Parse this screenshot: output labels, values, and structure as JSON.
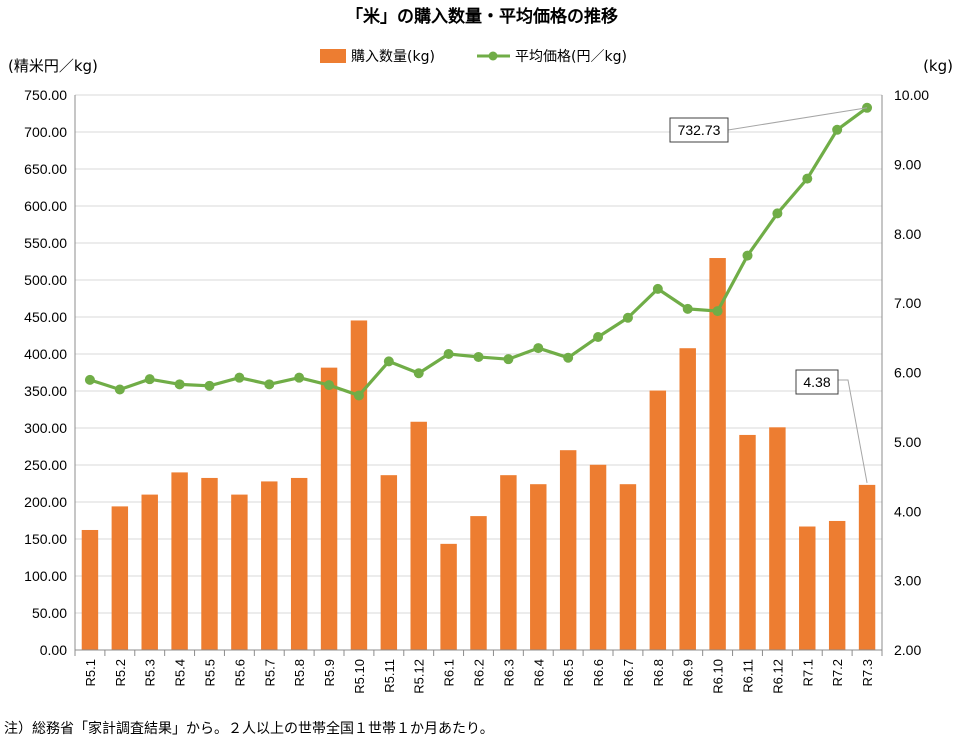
{
  "chart_data": {
    "type": "bar+line",
    "title": "「米」の購入数量・平均価格の推移",
    "left_axis_unit": "(精米円／kg)",
    "right_axis_unit": "(kg)",
    "left_ylim": [
      0,
      750
    ],
    "right_ylim": [
      2,
      10
    ],
    "left_ticks": [
      "0.00",
      "50.00",
      "100.00",
      "150.00",
      "200.00",
      "250.00",
      "300.00",
      "350.00",
      "400.00",
      "450.00",
      "500.00",
      "550.00",
      "600.00",
      "650.00",
      "700.00",
      "750.00"
    ],
    "right_ticks": [
      "2.00",
      "3.00",
      "4.00",
      "5.00",
      "6.00",
      "7.00",
      "8.00",
      "9.00",
      "10.00"
    ],
    "categories": [
      "R5.1",
      "R5.2",
      "R5.3",
      "R5.4",
      "R5.5",
      "R5.6",
      "R5.7",
      "R5.8",
      "R5.9",
      "R5.10",
      "R5.11",
      "R5.12",
      "R6.1",
      "R6.2",
      "R6.3",
      "R6.4",
      "R6.5",
      "R6.6",
      "R6.7",
      "R6.8",
      "R6.9",
      "R6.10",
      "R6.11",
      "R6.12",
      "R7.1",
      "R7.2",
      "R7.3"
    ],
    "series": [
      {
        "name": "購入数量(kg)",
        "type": "bar",
        "axis": "right",
        "color": "#ED7D31",
        "values": [
          3.73,
          4.07,
          4.24,
          4.56,
          4.48,
          4.24,
          4.43,
          4.48,
          6.07,
          6.75,
          4.52,
          5.29,
          3.53,
          3.93,
          4.52,
          4.39,
          4.88,
          4.67,
          4.39,
          5.74,
          6.35,
          7.65,
          5.1,
          5.21,
          3.78,
          3.86,
          4.38
        ]
      },
      {
        "name": "平均価格(円／kg)",
        "type": "line",
        "axis": "left",
        "color": "#70AD47",
        "values": [
          365,
          352,
          366,
          359,
          357,
          368,
          359,
          368,
          358,
          344,
          390,
          374,
          400,
          396,
          393,
          408,
          395,
          423,
          449,
          488,
          461,
          458,
          533,
          590,
          637,
          703,
          732.73
        ]
      }
    ],
    "annotations": [
      {
        "text": "732.73",
        "category": "R7.3",
        "series": "平均価格(円／kg)"
      },
      {
        "text": "4.38",
        "category": "R7.3",
        "series": "購入数量(kg)"
      }
    ],
    "legend_position": "top-center",
    "grid": true
  },
  "note": "注）総務省「家計調査結果」から。２人以上の世帯全国１世帯１か月あたり。"
}
